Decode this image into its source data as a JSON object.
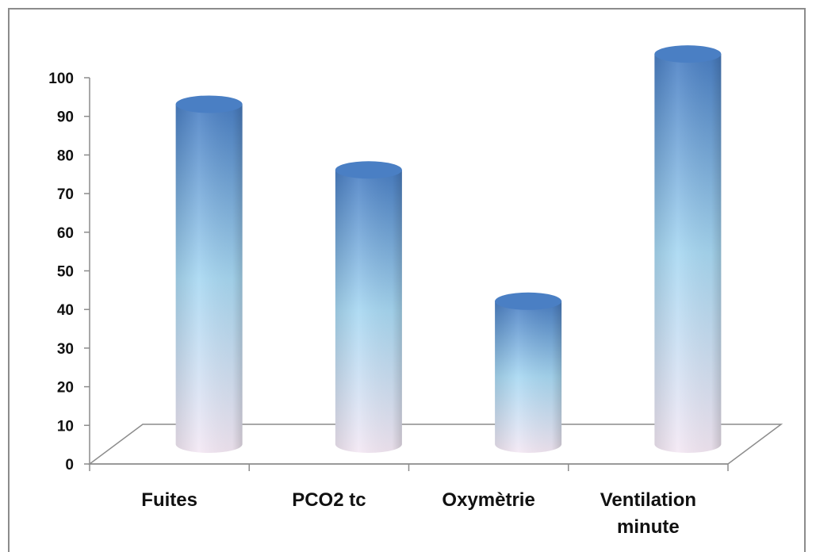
{
  "chart_data": {
    "type": "bar",
    "style": "3d-cylinder",
    "title": "",
    "xlabel": "",
    "ylabel": "",
    "categories": [
      "Fuites",
      "PCO2 tc",
      "Oxymètrie",
      "Ventilation minute"
    ],
    "category_label_lines": [
      [
        "Fuites"
      ],
      [
        "PCO2 tc"
      ],
      [
        "Oxymètrie"
      ],
      [
        "Ventilation",
        "minute"
      ]
    ],
    "values": [
      88,
      71,
      37,
      101
    ],
    "ylim": [
      0,
      100
    ],
    "yticks": [
      0,
      10,
      20,
      30,
      40,
      50,
      60,
      70,
      80,
      90,
      100
    ],
    "grid": false,
    "legend": "none",
    "colors": {
      "bar_top": "#4a7fc4",
      "bar_mid": "#a8d8f2",
      "bar_bottom": "#f4e8f4",
      "axis": "#8c8c8c"
    }
  }
}
